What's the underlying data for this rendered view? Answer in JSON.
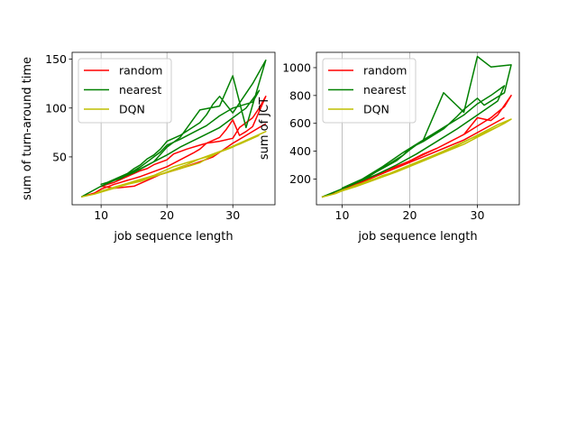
{
  "colors": {
    "random": "#ff0000",
    "nearest": "#008000",
    "DQN": "#bfbf00",
    "grid": "#b0b0b0"
  },
  "chart_data": [
    {
      "type": "line",
      "title": "",
      "xlabel": "job sequence length",
      "ylabel": "sum of turn-around time",
      "xlim": [
        5.6,
        36.4
      ],
      "ylim": [
        1,
        157
      ],
      "xticks": [
        10,
        20,
        30
      ],
      "yticks": [
        50,
        100,
        150
      ],
      "grid": "x-axis only",
      "legend": "upper left",
      "series": [
        {
          "name": "random",
          "color": "#ff0000",
          "x": [
            7,
            9,
            10,
            12,
            14,
            15,
            16,
            18,
            20,
            22,
            24,
            25,
            26,
            28,
            29,
            30,
            31,
            32,
            33,
            35,
            34,
            33,
            31,
            30,
            28,
            26,
            25,
            23,
            21,
            20,
            18,
            17,
            16,
            15,
            14,
            13,
            12,
            11,
            10,
            12,
            15,
            19,
            22,
            25,
            27,
            30,
            32,
            34,
            35
          ],
          "y": [
            9,
            13,
            17,
            22,
            26,
            28,
            30,
            35,
            40,
            47,
            54,
            58,
            64,
            70,
            78,
            88,
            72,
            76,
            81,
            112,
            100,
            90,
            80,
            69,
            66,
            64,
            62,
            58,
            53,
            47,
            42,
            38,
            36,
            33,
            30,
            27,
            24,
            22,
            20,
            18,
            20,
            32,
            38,
            45,
            50,
            64,
            72,
            80,
            84
          ]
        },
        {
          "name": "nearest",
          "color": "#008000",
          "x": [
            7,
            10,
            12,
            15,
            18,
            20,
            22,
            25,
            28,
            30,
            32,
            35,
            33,
            30,
            28,
            27,
            26,
            25,
            22,
            20,
            19,
            18,
            17,
            16,
            15,
            14,
            13,
            12,
            11,
            10,
            13,
            16,
            19,
            20,
            22,
            24,
            26,
            28,
            30,
            33,
            34,
            32,
            30,
            28,
            25,
            22,
            20,
            18,
            16,
            14,
            12,
            10
          ],
          "y": [
            9,
            20,
            26,
            34,
            45,
            60,
            70,
            98,
            102,
            133,
            80,
            149,
            125,
            95,
            112,
            104,
            93,
            85,
            72,
            66,
            58,
            52,
            48,
            42,
            38,
            33,
            30,
            27,
            24,
            22,
            28,
            40,
            55,
            62,
            68,
            75,
            82,
            92,
            100,
            106,
            118,
            100,
            90,
            80,
            70,
            60,
            52,
            45,
            38,
            32,
            26,
            20
          ]
        },
        {
          "name": "DQN",
          "color": "#bfbf00",
          "x": [
            7,
            9,
            10,
            12,
            14,
            16,
            18,
            20,
            22,
            24,
            25,
            26,
            28,
            30,
            32,
            34,
            35,
            33,
            31,
            29,
            27,
            25,
            23,
            21,
            20,
            19,
            18,
            17,
            16,
            15,
            14,
            13,
            12,
            11,
            10,
            9,
            11,
            13,
            15,
            17,
            19,
            21,
            23,
            25,
            27,
            29,
            31,
            33,
            34
          ],
          "y": [
            9,
            12,
            14,
            18,
            22,
            25,
            30,
            34,
            38,
            42,
            44,
            48,
            55,
            60,
            67,
            73,
            76,
            70,
            64,
            58,
            52,
            48,
            44,
            40,
            37,
            34,
            31,
            29,
            27,
            25,
            23,
            21,
            19,
            17,
            15,
            12,
            16,
            20,
            24,
            28,
            32,
            37,
            42,
            48,
            53,
            58,
            63,
            69,
            72
          ]
        }
      ]
    },
    {
      "type": "line",
      "title": "",
      "xlabel": "job sequence length",
      "ylabel": "sum of JCT",
      "xlim": [
        6.2,
        36.2
      ],
      "ylim": [
        15,
        1110
      ],
      "xticks": [
        10,
        20,
        30
      ],
      "yticks": [
        200,
        400,
        600,
        800,
        1000
      ],
      "grid": "x-axis only",
      "legend": "upper left",
      "series": [
        {
          "name": "random",
          "color": "#ff0000",
          "x": [
            7,
            9,
            10,
            12,
            14,
            15,
            16,
            18,
            20,
            22,
            24,
            26,
            28,
            30,
            32,
            33,
            35,
            34,
            32,
            30,
            28,
            26,
            24,
            22,
            20,
            18,
            17,
            16,
            15,
            14,
            13,
            12,
            11,
            10,
            13,
            16,
            19,
            22,
            25,
            28,
            31,
            34
          ],
          "y": [
            70,
            105,
            125,
            160,
            200,
            220,
            245,
            290,
            330,
            380,
            420,
            470,
            520,
            640,
            620,
            660,
            800,
            720,
            640,
            580,
            520,
            470,
            420,
            375,
            330,
            290,
            270,
            250,
            230,
            210,
            190,
            170,
            150,
            130,
            180,
            240,
            300,
            360,
            420,
            480,
            560,
            640
          ]
        },
        {
          "name": "nearest",
          "color": "#008000",
          "x": [
            7,
            10,
            12,
            15,
            18,
            20,
            22,
            25,
            28,
            30,
            32,
            35,
            34,
            31,
            30,
            28,
            27,
            25,
            22,
            20,
            19,
            18,
            17,
            16,
            15,
            14,
            13,
            12,
            11,
            10,
            13,
            16,
            19,
            22,
            25,
            28,
            30,
            32,
            34,
            33,
            30,
            27,
            24,
            21,
            18,
            15,
            12,
            10
          ],
          "y": [
            70,
            130,
            175,
            250,
            330,
            410,
            480,
            820,
            680,
            1080,
            1005,
            1020,
            820,
            730,
            780,
            700,
            650,
            560,
            470,
            420,
            370,
            340,
            310,
            280,
            250,
            220,
            195,
            175,
            155,
            135,
            200,
            290,
            390,
            480,
            570,
            660,
            740,
            800,
            870,
            760,
            660,
            560,
            470,
            380,
            300,
            230,
            170,
            130
          ]
        },
        {
          "name": "DQN",
          "color": "#bfbf00",
          "x": [
            7,
            9,
            10,
            12,
            14,
            16,
            18,
            20,
            22,
            24,
            26,
            28,
            30,
            32,
            34,
            35,
            33,
            31,
            29,
            27,
            25,
            23,
            21,
            20,
            19,
            18,
            17,
            16,
            15,
            14,
            13,
            12,
            11,
            10,
            9,
            11,
            13,
            15,
            17,
            19,
            21,
            23,
            25,
            27,
            29,
            31,
            33,
            34
          ],
          "y": [
            70,
            95,
            115,
            145,
            180,
            215,
            250,
            290,
            330,
            370,
            410,
            450,
            500,
            550,
            600,
            630,
            590,
            540,
            490,
            440,
            400,
            360,
            320,
            300,
            280,
            260,
            240,
            225,
            205,
            190,
            170,
            155,
            135,
            120,
            100,
            130,
            165,
            200,
            240,
            280,
            320,
            360,
            400,
            445,
            490,
            530,
            575,
            600
          ]
        }
      ]
    }
  ]
}
